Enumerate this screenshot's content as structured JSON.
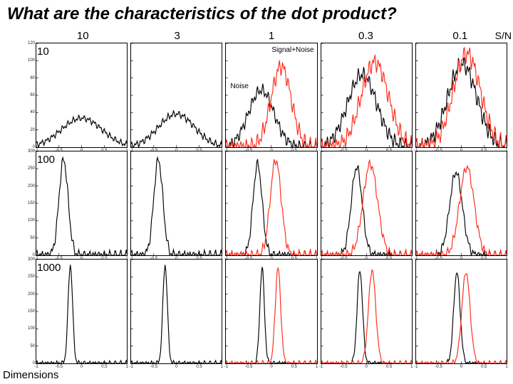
{
  "title": "What are the characteristics of the dot product?",
  "sn_label": "S/N",
  "dimensions_label": "Dimensions",
  "col_headers": [
    "10",
    "3",
    "1",
    "0.3",
    "0.1"
  ],
  "row_labels": [
    "10",
    "100",
    "1000"
  ],
  "annotations": {
    "signal_noise": "Signal+Noise",
    "noise": "Noise"
  },
  "colors": {
    "noise_curve": "#000000",
    "signal_curve": "#ff2a1a",
    "axis": "#000000",
    "background": "#ffffff"
  },
  "plot": {
    "xlim": [
      -1,
      1
    ],
    "xticks": [
      -1,
      -0.5,
      0,
      0.5,
      1
    ],
    "line_width": 0.9,
    "ymax_row": [
      120,
      300,
      300
    ]
  },
  "panels": [
    [
      {
        "noise_center": 0.0,
        "noise_sigma": 0.45,
        "noise_amp": 0.28,
        "signal_center": null,
        "signal_sigma": 0.0,
        "signal_amp": 0.0
      },
      {
        "noise_center": 0.0,
        "noise_sigma": 0.4,
        "noise_amp": 0.32,
        "signal_center": null,
        "signal_sigma": 0.0,
        "signal_amp": 0.0
      },
      {
        "noise_center": -0.22,
        "noise_sigma": 0.28,
        "noise_amp": 0.55,
        "signal_center": 0.22,
        "signal_sigma": 0.22,
        "signal_amp": 0.78
      },
      {
        "noise_center": -0.1,
        "noise_sigma": 0.32,
        "noise_amp": 0.7,
        "signal_center": 0.18,
        "signal_sigma": 0.3,
        "signal_amp": 0.82
      },
      {
        "noise_center": 0.02,
        "noise_sigma": 0.32,
        "noise_amp": 0.8,
        "signal_center": 0.12,
        "signal_sigma": 0.3,
        "signal_amp": 0.9
      }
    ],
    [
      {
        "noise_center": -0.4,
        "noise_sigma": 0.1,
        "noise_amp": 0.92,
        "signal_center": null,
        "signal_sigma": 0.0,
        "signal_amp": 0.0
      },
      {
        "noise_center": -0.4,
        "noise_sigma": 0.1,
        "noise_amp": 0.92,
        "signal_center": null,
        "signal_sigma": 0.0,
        "signal_amp": 0.0
      },
      {
        "noise_center": -0.3,
        "noise_sigma": 0.1,
        "noise_amp": 0.88,
        "signal_center": 0.1,
        "signal_sigma": 0.12,
        "signal_amp": 0.92
      },
      {
        "noise_center": -0.22,
        "noise_sigma": 0.12,
        "noise_amp": 0.85,
        "signal_center": 0.08,
        "signal_sigma": 0.16,
        "signal_amp": 0.88
      },
      {
        "noise_center": -0.12,
        "noise_sigma": 0.14,
        "noise_amp": 0.8,
        "signal_center": 0.12,
        "signal_sigma": 0.16,
        "signal_amp": 0.85
      }
    ],
    [
      {
        "noise_center": -0.25,
        "noise_sigma": 0.05,
        "noise_amp": 0.95,
        "signal_center": null,
        "signal_sigma": 0.0,
        "signal_amp": 0.0
      },
      {
        "noise_center": -0.25,
        "noise_sigma": 0.05,
        "noise_amp": 0.95,
        "signal_center": null,
        "signal_sigma": 0.0,
        "signal_amp": 0.0
      },
      {
        "noise_center": -0.2,
        "noise_sigma": 0.05,
        "noise_amp": 0.92,
        "signal_center": 0.15,
        "signal_sigma": 0.06,
        "signal_amp": 0.92
      },
      {
        "noise_center": -0.15,
        "noise_sigma": 0.06,
        "noise_amp": 0.9,
        "signal_center": 0.12,
        "signal_sigma": 0.08,
        "signal_amp": 0.9
      },
      {
        "noise_center": -0.1,
        "noise_sigma": 0.07,
        "noise_amp": 0.88,
        "signal_center": 0.1,
        "signal_sigma": 0.09,
        "signal_amp": 0.88
      }
    ]
  ]
}
